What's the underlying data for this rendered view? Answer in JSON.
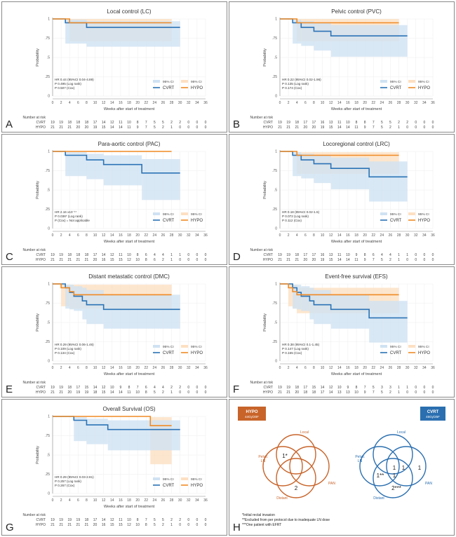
{
  "colors": {
    "cvrt": "#2b73b6",
    "hypo": "#f08a24",
    "cvrt_ci": "#cfe2f3",
    "hypo_ci": "#fde0c2",
    "hypo_venn": "#c8642a",
    "cvrt_venn": "#2b6fb0"
  },
  "x_ticks": [
    0,
    2,
    4,
    6,
    8,
    10,
    12,
    14,
    16,
    18,
    20,
    22,
    24,
    26,
    28,
    30,
    32,
    34,
    36
  ],
  "y_ticks": [
    {
      "v": 0,
      "label": "0"
    },
    {
      "v": 0.25,
      "label": ".25"
    },
    {
      "v": 0.5,
      "label": ".5"
    },
    {
      "v": 0.75,
      "label": ".75"
    },
    {
      "v": 1,
      "label": "1"
    }
  ],
  "xlabel": "Weeks after start of treatment",
  "ylabel": "Probability",
  "risk_header": "Number at risk",
  "legend": {
    "ci": "95% CI",
    "cvrt": "CVRT",
    "hypo": "HYPO"
  },
  "chart_data": [
    {
      "type": "line",
      "panel": "A",
      "title": "Local control (LC)",
      "xlim": [
        0,
        36
      ],
      "ylim": [
        0,
        1
      ],
      "stats": [
        "HR 0.44 (95%CI 0.04-4.89)",
        "P 0.495 (Log rank)",
        "P 0.507 (Cox)"
      ],
      "series": [
        {
          "name": "CVRT",
          "x": [
            0,
            3,
            8,
            30
          ],
          "y": [
            1,
            0.95,
            0.89,
            0.89
          ],
          "ci_lo": [
            1,
            0.68,
            0.64,
            0.64
          ],
          "ci_hi": [
            1,
            0.99,
            0.97,
            0.97
          ]
        },
        {
          "name": "HYPO",
          "x": [
            0,
            4,
            28
          ],
          "y": [
            1,
            0.95,
            0.95
          ],
          "ci_lo": [
            1,
            0.71,
            0.71
          ],
          "ci_hi": [
            1,
            1,
            1
          ]
        }
      ],
      "at_risk": {
        "CVRT": [
          19,
          19,
          18,
          18,
          18,
          17,
          14,
          12,
          11,
          10,
          8,
          7,
          5,
          5,
          2,
          2,
          0,
          0,
          0
        ],
        "HYPO": [
          21,
          21,
          21,
          20,
          20,
          19,
          15,
          14,
          14,
          11,
          9,
          7,
          5,
          2,
          1,
          0,
          0,
          0,
          0
        ]
      }
    },
    {
      "type": "line",
      "panel": "B",
      "title": "Pelvic control (PVC)",
      "xlim": [
        0,
        36
      ],
      "ylim": [
        0,
        1
      ],
      "stats": [
        "HR 0.22 (95%CI 0.02-1.96)",
        "P 0.135 (Log rank)",
        "P 0.174 (Cox)"
      ],
      "series": [
        {
          "name": "CVRT",
          "x": [
            0,
            3,
            5,
            8,
            12,
            30
          ],
          "y": [
            1,
            0.95,
            0.89,
            0.84,
            0.78,
            0.78
          ],
          "ci_lo": [
            1,
            0.68,
            0.65,
            0.59,
            0.51,
            0.51
          ],
          "ci_hi": [
            1,
            0.99,
            0.97,
            0.95,
            0.92,
            0.92
          ]
        },
        {
          "name": "HYPO",
          "x": [
            0,
            4,
            28
          ],
          "y": [
            1,
            0.95,
            0.95
          ],
          "ci_lo": [
            1,
            0.71,
            0.71
          ],
          "ci_hi": [
            1,
            1,
            1
          ]
        }
      ],
      "at_risk": {
        "CVRT": [
          19,
          19,
          18,
          17,
          17,
          16,
          13,
          11,
          10,
          8,
          8,
          7,
          5,
          5,
          2,
          2,
          0,
          0,
          0
        ],
        "HYPO": [
          21,
          21,
          21,
          20,
          20,
          19,
          15,
          14,
          14,
          11,
          9,
          7,
          5,
          2,
          1,
          0,
          0,
          0,
          0
        ]
      }
    },
    {
      "type": "line",
      "panel": "C",
      "title": "Para-aortic control (PAC)",
      "xlim": [
        0,
        36
      ],
      "ylim": [
        0,
        1
      ],
      "stats": [
        "HR 2.16 x10⁻¹⁷",
        "P 0.036* (Log rank)",
        "P (Cox) = Not applicable"
      ],
      "series": [
        {
          "name": "CVRT",
          "x": [
            0,
            3,
            8,
            12,
            21,
            30
          ],
          "y": [
            1,
            0.95,
            0.89,
            0.83,
            0.72,
            0.72
          ],
          "ci_lo": [
            1,
            0.68,
            0.64,
            0.56,
            0.37,
            0.37
          ],
          "ci_hi": [
            1,
            0.99,
            0.97,
            0.95,
            0.9,
            0.9
          ]
        },
        {
          "name": "HYPO",
          "x": [
            0,
            28
          ],
          "y": [
            1,
            1
          ],
          "ci_lo": [
            1,
            1
          ],
          "ci_hi": [
            1,
            1
          ]
        }
      ],
      "at_risk": {
        "CVRT": [
          19,
          19,
          18,
          18,
          18,
          17,
          14,
          12,
          11,
          10,
          8,
          6,
          4,
          4,
          1,
          1,
          0,
          0,
          0
        ],
        "HYPO": [
          21,
          21,
          21,
          21,
          21,
          20,
          16,
          15,
          15,
          12,
          10,
          8,
          6,
          2,
          1,
          0,
          0,
          0,
          0
        ]
      }
    },
    {
      "type": "line",
      "panel": "D",
      "title": "Locoregional control (LRC)",
      "xlim": [
        0,
        36
      ],
      "ylim": [
        0,
        1
      ],
      "stats": [
        "HR 0.18 (95%CI 0.02-1.5)",
        "P 0.072 (Log rank)",
        "P 0.112 (Cox)"
      ],
      "series": [
        {
          "name": "CVRT",
          "x": [
            0,
            3,
            5,
            8,
            12,
            21,
            30
          ],
          "y": [
            1,
            0.95,
            0.89,
            0.84,
            0.78,
            0.67,
            0.67
          ],
          "ci_lo": [
            1,
            0.68,
            0.65,
            0.59,
            0.51,
            0.35,
            0.35
          ],
          "ci_hi": [
            1,
            0.99,
            0.97,
            0.95,
            0.92,
            0.87,
            0.87
          ]
        },
        {
          "name": "HYPO",
          "x": [
            0,
            4,
            28
          ],
          "y": [
            1,
            0.95,
            0.95
          ],
          "ci_lo": [
            1,
            0.71,
            0.71
          ],
          "ci_hi": [
            1,
            0.99,
            0.99
          ]
        }
      ],
      "at_risk": {
        "CVRT": [
          19,
          19,
          18,
          17,
          17,
          16,
          13,
          11,
          10,
          9,
          8,
          6,
          4,
          4,
          1,
          1,
          0,
          0,
          0
        ],
        "HYPO": [
          21,
          21,
          21,
          20,
          20,
          19,
          15,
          14,
          14,
          11,
          9,
          7,
          5,
          2,
          1,
          0,
          0,
          0,
          0
        ]
      }
    },
    {
      "type": "line",
      "panel": "E",
      "title": "Distant metastatic control (DMC)",
      "xlim": [
        0,
        36
      ],
      "ylim": [
        0,
        1
      ],
      "stats": [
        "HR 0.29 (95%CI 0.06-1.46)",
        "P 0.109 (Log rank)",
        "P 0.134 (Cox)"
      ],
      "series": [
        {
          "name": "CVRT",
          "x": [
            0,
            3,
            4,
            5,
            7,
            8,
            12,
            30
          ],
          "y": [
            1,
            0.95,
            0.89,
            0.84,
            0.78,
            0.73,
            0.67,
            0.67
          ],
          "ci_lo": [
            1,
            0.68,
            0.67,
            0.65,
            0.54,
            0.48,
            0.42,
            0.42
          ],
          "ci_hi": [
            1,
            0.99,
            0.99,
            0.97,
            0.95,
            0.92,
            0.86,
            0.86
          ]
        },
        {
          "name": "HYPO",
          "x": [
            0,
            2,
            4,
            5,
            28
          ],
          "y": [
            1,
            0.95,
            0.9,
            0.86,
            0.86
          ],
          "ci_lo": [
            1,
            0.71,
            0.68,
            0.68,
            0.68
          ],
          "ci_hi": [
            1,
            0.99,
            0.99,
            0.99,
            0.99
          ]
        }
      ],
      "at_risk": {
        "CVRT": [
          19,
          19,
          18,
          17,
          15,
          14,
          12,
          10,
          9,
          8,
          7,
          6,
          4,
          4,
          2,
          2,
          0,
          0,
          0
        ],
        "HYPO": [
          21,
          21,
          20,
          19,
          19,
          18,
          15,
          14,
          14,
          11,
          10,
          8,
          5,
          2,
          1,
          0,
          0,
          0,
          0
        ]
      }
    },
    {
      "type": "line",
      "panel": "F",
      "title": "Event-free survival (EFS)",
      "xlim": [
        0,
        36
      ],
      "ylim": [
        0,
        1
      ],
      "stats": [
        "HR 0.38 (95%CI 0.1-1.45)",
        "P 0.147 (Log rank)",
        "P 0.165 (Cox)"
      ],
      "series": [
        {
          "name": "CVRT",
          "x": [
            0,
            3,
            4,
            5,
            7,
            8,
            12,
            21,
            30
          ],
          "y": [
            1,
            0.95,
            0.89,
            0.84,
            0.78,
            0.73,
            0.67,
            0.56,
            0.56
          ],
          "ci_lo": [
            1,
            0.68,
            0.67,
            0.65,
            0.54,
            0.48,
            0.42,
            0.24,
            0.24
          ],
          "ci_hi": [
            1,
            0.99,
            0.99,
            0.97,
            0.95,
            0.92,
            0.86,
            0.78,
            0.78
          ]
        },
        {
          "name": "HYPO",
          "x": [
            0,
            2,
            3,
            4,
            28
          ],
          "y": [
            1,
            0.95,
            0.9,
            0.86,
            0.86
          ],
          "ci_lo": [
            1,
            0.71,
            0.68,
            0.62,
            0.62
          ],
          "ci_hi": [
            1,
            0.99,
            0.99,
            0.95,
            0.95
          ]
        }
      ],
      "at_risk": {
        "CVRT": [
          19,
          19,
          18,
          17,
          15,
          14,
          12,
          10,
          9,
          8,
          7,
          5,
          3,
          3,
          1,
          1,
          0,
          0,
          0
        ],
        "HYPO": [
          21,
          21,
          20,
          18,
          18,
          17,
          14,
          13,
          13,
          10,
          9,
          7,
          5,
          2,
          1,
          0,
          0,
          0,
          0
        ]
      }
    },
    {
      "type": "line",
      "panel": "G",
      "title": "Overall Survival (OS)",
      "xlim": [
        0,
        36
      ],
      "ylim": [
        0,
        1
      ],
      "stats": [
        "HR 0.29 (95%CI 0.03-2.81)",
        "P 0.257 (Log rank)",
        "P 0.267 (Cox)"
      ],
      "series": [
        {
          "name": "CVRT",
          "x": [
            0,
            5,
            8,
            13,
            30
          ],
          "y": [
            1,
            0.95,
            0.89,
            0.83,
            0.83
          ],
          "ci_lo": [
            1,
            0.68,
            0.64,
            0.56,
            0.56
          ],
          "ci_hi": [
            1,
            0.99,
            0.97,
            0.95,
            0.95
          ]
        },
        {
          "name": "HYPO",
          "x": [
            0,
            23,
            28
          ],
          "y": [
            1,
            0.88,
            0.88
          ],
          "ci_lo": [
            1,
            0.38,
            0.38
          ],
          "ci_hi": [
            1,
            0.99,
            0.99
          ]
        }
      ],
      "at_risk": {
        "CVRT": [
          19,
          19,
          19,
          19,
          18,
          17,
          14,
          12,
          11,
          10,
          8,
          7,
          5,
          5,
          2,
          2,
          0,
          0,
          0
        ],
        "HYPO": [
          21,
          21,
          21,
          21,
          21,
          20,
          16,
          15,
          15,
          12,
          10,
          8,
          5,
          2,
          1,
          0,
          0,
          0,
          0
        ]
      }
    }
  ],
  "venn": {
    "panel": "H",
    "hypo": {
      "title": "HYPO",
      "subtitle": "44Gy/20F",
      "labels": {
        "local": "Local",
        "pelvic": "Pelvic\nLN",
        "pan": "PAN",
        "distant": "Distant"
      },
      "counts": [
        "1*",
        "2"
      ]
    },
    "cvrt": {
      "title": "CVRT",
      "subtitle": "45Gy/25F",
      "labels": {
        "local": "Local",
        "pelvic": "Pelvic\nLN",
        "pan": "PAN",
        "distant": "Distant"
      },
      "counts": [
        "1",
        "1",
        "1",
        "1**",
        "1",
        "2***"
      ]
    },
    "footnotes": [
      "*Initial rectal invasion",
      "**Excluded from per protocol due to inadequate LN dose",
      "***One patient with EFRT"
    ]
  }
}
